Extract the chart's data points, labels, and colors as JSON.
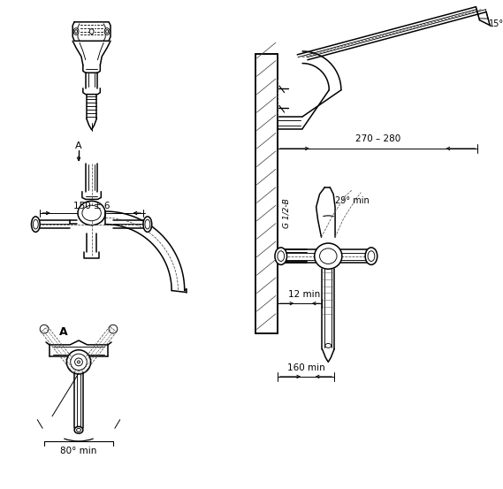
{
  "bg_color": "#ffffff",
  "lc": "#000000",
  "lw": 1.1,
  "lt": 0.65,
  "ld": 0.55,
  "annotations": {
    "dim_150": "150 ± 6",
    "dim_270_280": "270 – 280",
    "dim_29": "29° min",
    "dim_15": "15°",
    "dim_12": "12 min",
    "dim_160": "160 min",
    "dim_80": "80° min",
    "label_A_arrow": "A",
    "label_A": "A",
    "label_G": "G 1/2-B"
  }
}
